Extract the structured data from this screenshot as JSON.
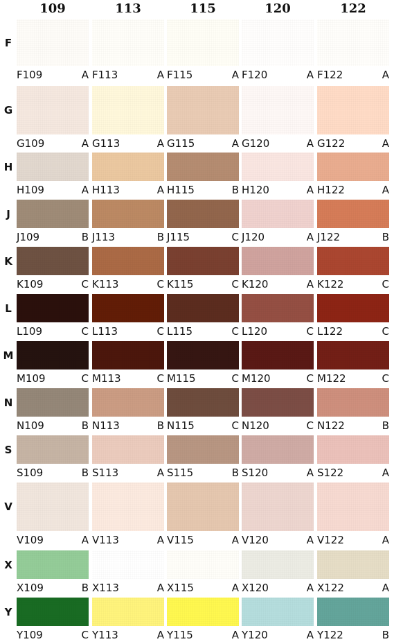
{
  "columns": [
    "109",
    "113",
    "115",
    "120",
    "122"
  ],
  "rows": [
    {
      "letter": "F",
      "cells": [
        {
          "code": "F109",
          "grade": "A",
          "color": "#FEFCF8"
        },
        {
          "code": "F113",
          "grade": "A",
          "color": "#FFFEF9"
        },
        {
          "code": "F115",
          "grade": "A",
          "color": "#FFFEF6"
        },
        {
          "code": "F120",
          "grade": "A",
          "color": "#FFFEFD"
        },
        {
          "code": "F122",
          "grade": "A",
          "color": "#FFFEFB"
        }
      ]
    },
    {
      "letter": "G",
      "cells": [
        {
          "code": "G109",
          "grade": "A",
          "color": "#F5E8DF"
        },
        {
          "code": "G113",
          "grade": "A",
          "color": "#FFF8DB"
        },
        {
          "code": "G115",
          "grade": "A",
          "color": "#E9CBB4"
        },
        {
          "code": "G120",
          "grade": "A",
          "color": "#FEF8F6"
        },
        {
          "code": "G122",
          "grade": "A",
          "color": "#FFDBC6"
        }
      ]
    },
    {
      "letter": "H",
      "cells": [
        {
          "code": "H109",
          "grade": "A",
          "color": "#E2D8CE"
        },
        {
          "code": "H113",
          "grade": "A",
          "color": "#EBC8A0"
        },
        {
          "code": "H115",
          "grade": "B",
          "color": "#B58C71"
        },
        {
          "code": "H120",
          "grade": "A",
          "color": "#FAE6E1"
        },
        {
          "code": "H122",
          "grade": "A",
          "color": "#E9AC8F"
        }
      ]
    },
    {
      "letter": "J",
      "cells": [
        {
          "code": "J109",
          "grade": "B",
          "color": "#9F8B77"
        },
        {
          "code": "J113",
          "grade": "B",
          "color": "#BC8963"
        },
        {
          "code": "J115",
          "grade": "C",
          "color": "#92664C"
        },
        {
          "code": "J120",
          "grade": "A",
          "color": "#F0D2CE"
        },
        {
          "code": "J122",
          "grade": "B",
          "color": "#D67C58"
        }
      ]
    },
    {
      "letter": "K",
      "cells": [
        {
          "code": "K109",
          "grade": "C",
          "color": "#6E5242"
        },
        {
          "code": "K113",
          "grade": "C",
          "color": "#AB6A45"
        },
        {
          "code": "K115",
          "grade": "C",
          "color": "#7A4030"
        },
        {
          "code": "K120",
          "grade": "A",
          "color": "#D0A39E"
        },
        {
          "code": "K122",
          "grade": "C",
          "color": "#AB4630"
        }
      ]
    },
    {
      "letter": "L",
      "cells": [
        {
          "code": "L109",
          "grade": "C",
          "color": "#2B100C"
        },
        {
          "code": "L113",
          "grade": "C",
          "color": "#621D06"
        },
        {
          "code": "L115",
          "grade": "C",
          "color": "#5C2C1F"
        },
        {
          "code": "L120",
          "grade": "C",
          "color": "#954F43"
        },
        {
          "code": "L122",
          "grade": "C",
          "color": "#8D2415"
        }
      ]
    },
    {
      "letter": "M",
      "cells": [
        {
          "code": "M109",
          "grade": "C",
          "color": "#25130F"
        },
        {
          "code": "M113",
          "grade": "C",
          "color": "#4C170C"
        },
        {
          "code": "M115",
          "grade": "C",
          "color": "#361612"
        },
        {
          "code": "M120",
          "grade": "C",
          "color": "#5A1915"
        },
        {
          "code": "M122",
          "grade": "C",
          "color": "#731F16"
        }
      ]
    },
    {
      "letter": "N",
      "cells": [
        {
          "code": "N109",
          "grade": "B",
          "color": "#958778"
        },
        {
          "code": "N113",
          "grade": "B",
          "color": "#CB9C83"
        },
        {
          "code": "N115",
          "grade": "C",
          "color": "#6E4C3D"
        },
        {
          "code": "N120",
          "grade": "C",
          "color": "#7C4D45"
        },
        {
          "code": "N122",
          "grade": "B",
          "color": "#CE8F7D"
        }
      ]
    },
    {
      "letter": "S",
      "cells": [
        {
          "code": "S109",
          "grade": "B",
          "color": "#C6B4A4"
        },
        {
          "code": "S113",
          "grade": "A",
          "color": "#EBCBBD"
        },
        {
          "code": "S115",
          "grade": "B",
          "color": "#B89682"
        },
        {
          "code": "S120",
          "grade": "A",
          "color": "#CFABA5"
        },
        {
          "code": "S122",
          "grade": "A",
          "color": "#EBC1BA"
        }
      ]
    },
    {
      "letter": "V",
      "cells": [
        {
          "code": "V109",
          "grade": "A",
          "color": "#F1E6DD"
        },
        {
          "code": "V113",
          "grade": "A",
          "color": "#FCEADF"
        },
        {
          "code": "V115",
          "grade": "A",
          "color": "#E5C7AF"
        },
        {
          "code": "V120",
          "grade": "A",
          "color": "#EDD6CF"
        },
        {
          "code": "V122",
          "grade": "A",
          "color": "#F7DAD1"
        }
      ]
    },
    {
      "letter": "X",
      "cells": [
        {
          "code": "X109",
          "grade": "B",
          "color": "#94CC98"
        },
        {
          "code": "X113",
          "grade": "A",
          "color": "#FFFFFF"
        },
        {
          "code": "X115",
          "grade": "A",
          "color": "#FFFEF9"
        },
        {
          "code": "X120",
          "grade": "A",
          "color": "#ECECE4"
        },
        {
          "code": "X122",
          "grade": "A",
          "color": "#E6DDC6"
        }
      ]
    },
    {
      "letter": "Y",
      "cells": [
        {
          "code": "Y109",
          "grade": "C",
          "color": "#196B23"
        },
        {
          "code": "Y113",
          "grade": "A",
          "color": "#FFF47C"
        },
        {
          "code": "Y115",
          "grade": "A",
          "color": "#FFF84F"
        },
        {
          "code": "Y120",
          "grade": "A",
          "color": "#B5DDDD"
        },
        {
          "code": "Y122",
          "grade": "B",
          "color": "#63A59B"
        }
      ]
    }
  ]
}
